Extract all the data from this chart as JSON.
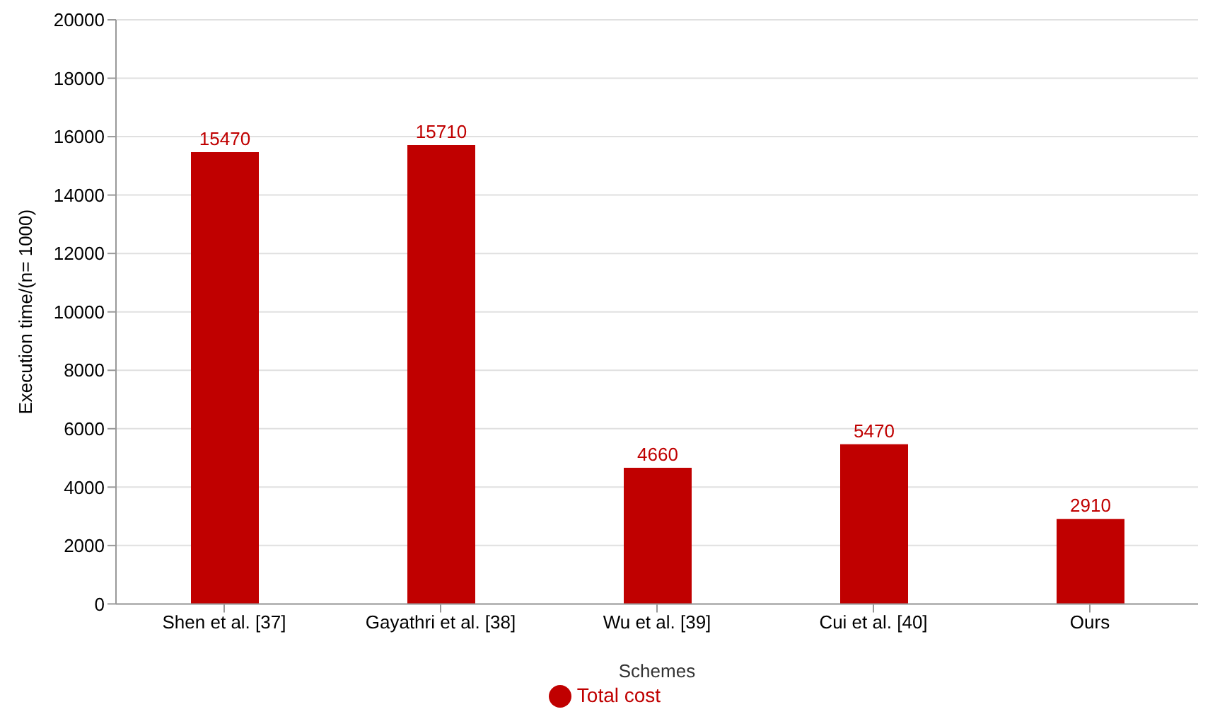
{
  "chart_data": {
    "type": "bar",
    "categories": [
      "Shen et al. [37]",
      "Gayathri et al. [38]",
      "Wu et al. [39]",
      "Cui et al. [40]",
      "Ours"
    ],
    "series": [
      {
        "name": "Total cost",
        "color": "#c00000",
        "values": [
          15470,
          15710,
          4660,
          5470,
          2910
        ]
      }
    ],
    "xlabel": "Schemes",
    "ylabel": "Execution time/(n= 1000)",
    "ylim": [
      0,
      20000
    ],
    "yticks": [
      0,
      2000,
      4000,
      6000,
      8000,
      10000,
      12000,
      14000,
      16000,
      18000,
      20000
    ],
    "grid": "y",
    "legend": "bottom",
    "data_labels": true
  }
}
